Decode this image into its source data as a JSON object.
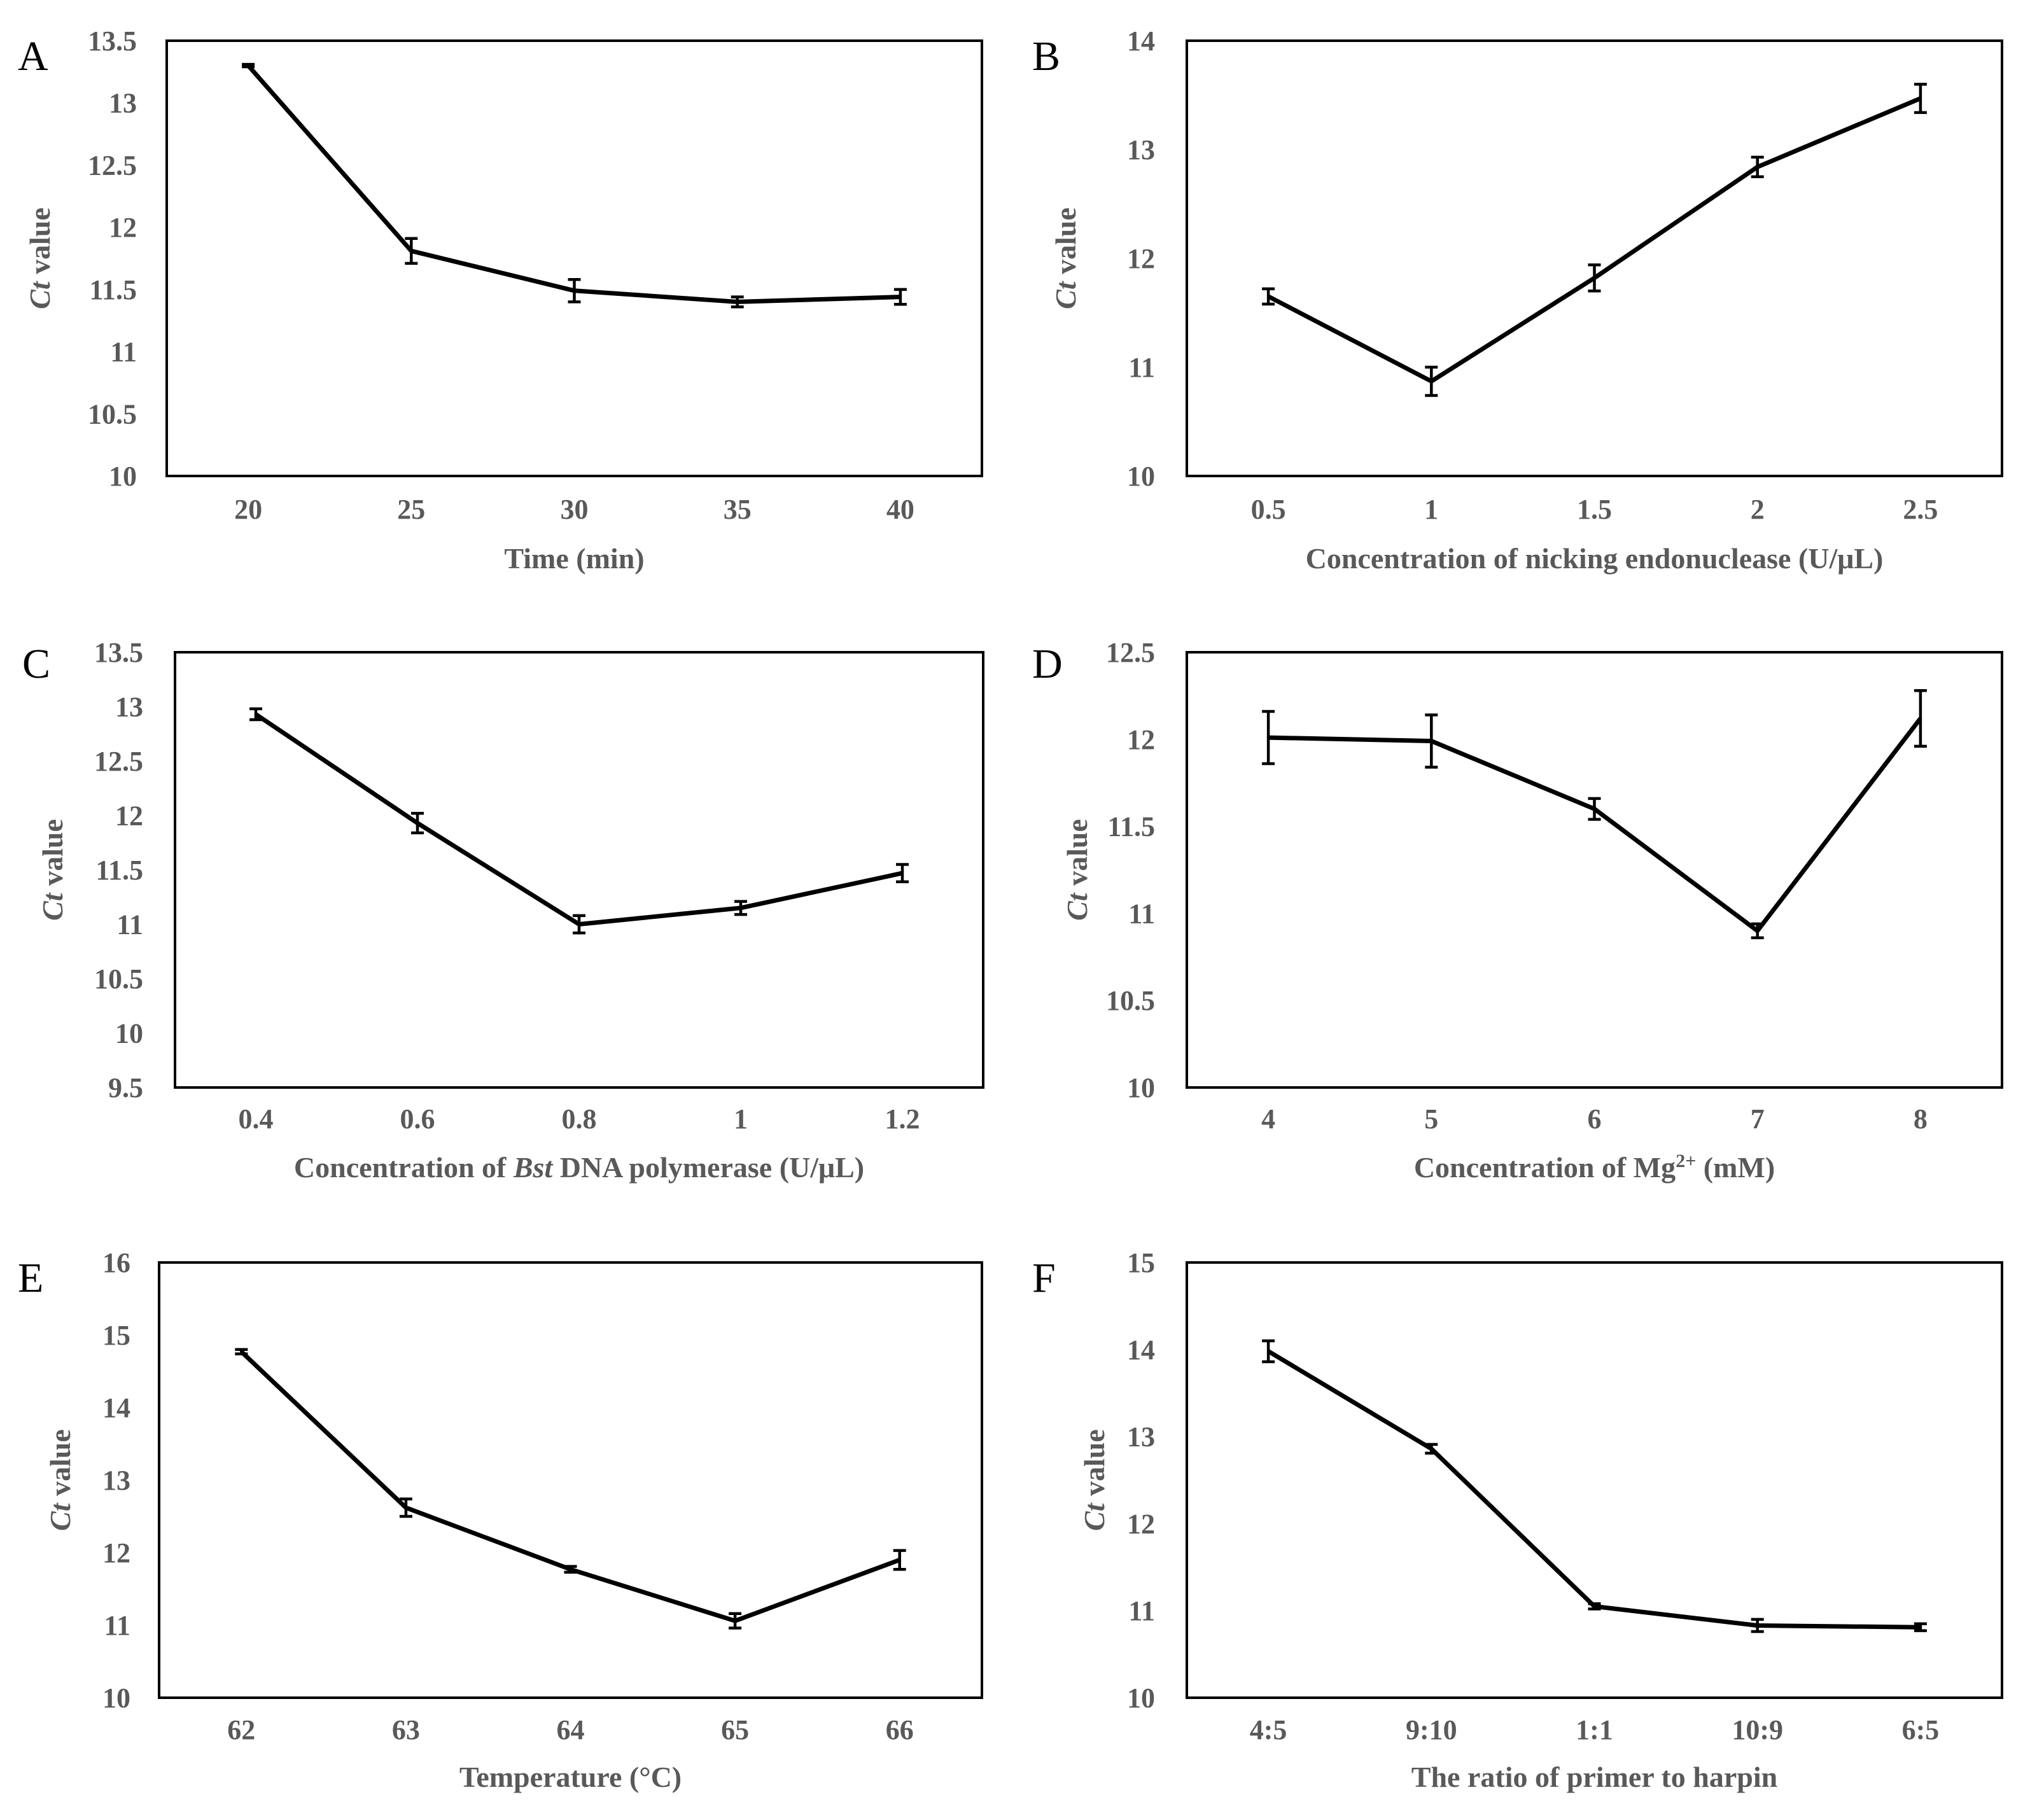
{
  "figure": {
    "panel_count": 6
  },
  "chart_data": [
    {
      "panel": "A",
      "type": "line",
      "title": "",
      "xlabel": [
        {
          "text": "Time (min)",
          "italic": false
        }
      ],
      "ylabel": [
        {
          "text": "Ct",
          "italic": true
        },
        {
          "text": " value",
          "italic": false
        }
      ],
      "categories": [
        "20",
        "25",
        "30",
        "35",
        "40"
      ],
      "yticks": [
        "10",
        "10.5",
        "11",
        "11.5",
        "12",
        "12.5",
        "13",
        "13.5"
      ],
      "ylim": [
        10,
        13.5
      ],
      "series": [
        {
          "name": "Ct value",
          "values": [
            13.3,
            11.81,
            11.49,
            11.4,
            11.44
          ],
          "errors": [
            0.01,
            0.1,
            0.09,
            0.04,
            0.06
          ]
        }
      ]
    },
    {
      "panel": "B",
      "type": "line",
      "title": "",
      "xlabel": [
        {
          "text": "Concentration of nicking endonuclease (U/μL)",
          "italic": false
        }
      ],
      "ylabel": [
        {
          "text": "Ct",
          "italic": true
        },
        {
          "text": " value",
          "italic": false
        }
      ],
      "categories": [
        "0.5",
        "1",
        "1.5",
        "2",
        "2.5"
      ],
      "yticks": [
        "10",
        "11",
        "12",
        "13",
        "14"
      ],
      "ylim": [
        10,
        14
      ],
      "series": [
        {
          "name": "Ct value",
          "values": [
            11.65,
            10.87,
            11.82,
            12.84,
            13.47
          ],
          "errors": [
            0.07,
            0.13,
            0.12,
            0.09,
            0.13
          ]
        }
      ]
    },
    {
      "panel": "C",
      "type": "line",
      "title": "",
      "xlabel": [
        {
          "text": "Concentration of ",
          "italic": false
        },
        {
          "text": "Bst",
          "italic": true
        },
        {
          "text": " DNA polymerase (U/μL)",
          "italic": false
        }
      ],
      "ylabel": [
        {
          "text": "Ct",
          "italic": true
        },
        {
          "text": " value",
          "italic": false
        }
      ],
      "categories": [
        "0.4",
        "0.6",
        "0.8",
        "1",
        "1.2"
      ],
      "yticks": [
        "9.5",
        "10",
        "10.5",
        "11",
        "11.5",
        "12",
        "12.5",
        "13",
        "13.5"
      ],
      "ylim": [
        9.5,
        13.5
      ],
      "series": [
        {
          "name": "Ct value",
          "values": [
            12.93,
            11.93,
            11.0,
            11.15,
            11.47
          ],
          "errors": [
            0.05,
            0.09,
            0.08,
            0.06,
            0.08
          ]
        }
      ]
    },
    {
      "panel": "D",
      "type": "line",
      "title": "",
      "xlabel": [
        {
          "text": "Concentration of Mg",
          "italic": false
        },
        {
          "text": "2+",
          "italic": false,
          "superscript": true
        },
        {
          "text": " (mM)",
          "italic": false
        }
      ],
      "ylabel": [
        {
          "text": "Ct",
          "italic": true
        },
        {
          "text": " value",
          "italic": false
        }
      ],
      "categories": [
        "4",
        "5",
        "6",
        "7",
        "8"
      ],
      "yticks": [
        "10",
        "10.5",
        "11",
        "11.5",
        "12",
        "12.5"
      ],
      "ylim": [
        10,
        12.5
      ],
      "series": [
        {
          "name": "Ct value",
          "values": [
            12.01,
            11.99,
            11.6,
            10.9,
            12.12
          ],
          "errors": [
            0.15,
            0.15,
            0.06,
            0.04,
            0.16
          ]
        }
      ]
    },
    {
      "panel": "E",
      "type": "line",
      "title": "",
      "xlabel": [
        {
          "text": "Temperature (°C)",
          "italic": false
        }
      ],
      "ylabel": [
        {
          "text": "Ct",
          "italic": true
        },
        {
          "text": " value",
          "italic": false
        }
      ],
      "categories": [
        "62",
        "63",
        "64",
        "65",
        "66"
      ],
      "yticks": [
        "10",
        "11",
        "12",
        "13",
        "14",
        "15",
        "16"
      ],
      "ylim": [
        10,
        16
      ],
      "series": [
        {
          "name": "Ct value",
          "values": [
            14.77,
            12.62,
            11.77,
            11.06,
            11.9
          ],
          "errors": [
            0.03,
            0.12,
            0.04,
            0.1,
            0.13
          ]
        }
      ]
    },
    {
      "panel": "F",
      "type": "line",
      "title": "",
      "xlabel": [
        {
          "text": "The ratio of primer to harpin",
          "italic": false
        }
      ],
      "ylabel": [
        {
          "text": "Ct",
          "italic": true
        },
        {
          "text": " value",
          "italic": false
        }
      ],
      "categories": [
        "4:5",
        "9:10",
        "1:1",
        "10:9",
        "6:5"
      ],
      "yticks": [
        "10",
        "11",
        "12",
        "13",
        "14",
        "15"
      ],
      "ylim": [
        10,
        15
      ],
      "series": [
        {
          "name": "Ct value",
          "values": [
            13.98,
            12.86,
            11.05,
            10.83,
            10.81
          ],
          "errors": [
            0.12,
            0.05,
            0.03,
            0.07,
            0.04
          ]
        }
      ]
    }
  ]
}
